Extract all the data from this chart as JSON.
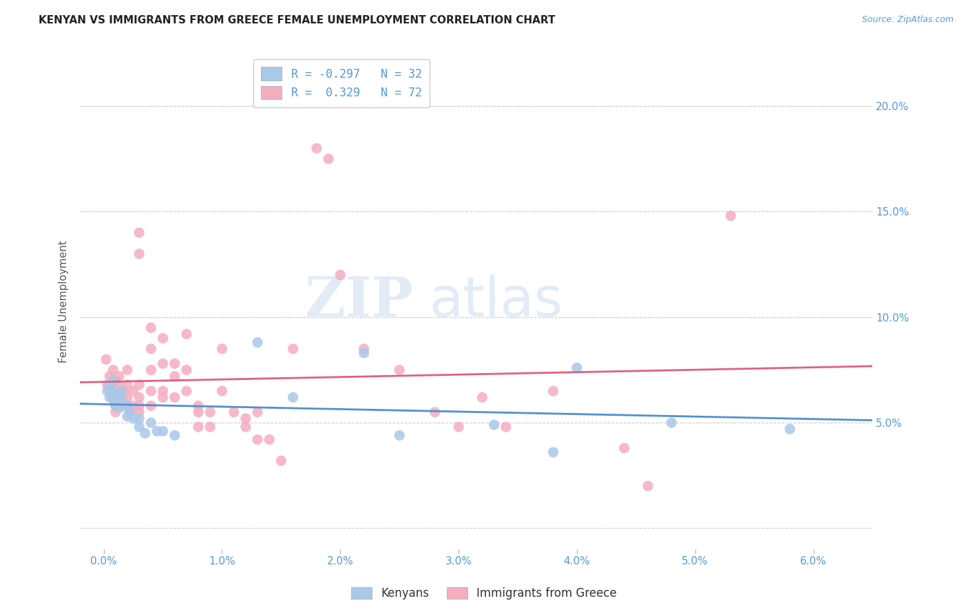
{
  "title": "KENYAN VS IMMIGRANTS FROM GREECE FEMALE UNEMPLOYMENT CORRELATION CHART",
  "source": "Source: ZipAtlas.com",
  "ylabel": "Female Unemployment",
  "x_ticks": [
    0.0,
    0.01,
    0.02,
    0.03,
    0.04,
    0.05,
    0.06
  ],
  "x_tick_labels": [
    "0.0%",
    "1.0%",
    "2.0%",
    "3.0%",
    "4.0%",
    "5.0%",
    "6.0%"
  ],
  "y_ticks": [
    0.0,
    0.05,
    0.1,
    0.15,
    0.2
  ],
  "y_tick_labels": [
    "",
    "5.0%",
    "10.0%",
    "15.0%",
    "20.0%"
  ],
  "xlim": [
    -0.002,
    0.065
  ],
  "ylim": [
    -0.01,
    0.225
  ],
  "kenyan_R": -0.297,
  "kenyan_N": 32,
  "greece_R": 0.329,
  "greece_N": 72,
  "kenyan_color": "#aac8e8",
  "greece_color": "#f5adc0",
  "kenyan_line_color": "#5090d0",
  "greece_line_color": "#e06080",
  "legend_label_kenyan": "Kenyans",
  "legend_label_greece": "Immigrants from Greece",
  "watermark_zip": "ZIP",
  "watermark_atlas": "atlas",
  "kenyan_x": [
    0.0003,
    0.0005,
    0.0005,
    0.0007,
    0.0008,
    0.0009,
    0.001,
    0.001,
    0.0012,
    0.0013,
    0.0015,
    0.0015,
    0.002,
    0.002,
    0.0022,
    0.0025,
    0.003,
    0.003,
    0.0035,
    0.004,
    0.0045,
    0.005,
    0.006,
    0.013,
    0.016,
    0.022,
    0.025,
    0.033,
    0.038,
    0.04,
    0.048,
    0.058
  ],
  "kenyan_y": [
    0.065,
    0.068,
    0.062,
    0.065,
    0.07,
    0.06,
    0.063,
    0.058,
    0.062,
    0.057,
    0.061,
    0.065,
    0.058,
    0.053,
    0.055,
    0.052,
    0.052,
    0.048,
    0.045,
    0.05,
    0.046,
    0.046,
    0.044,
    0.088,
    0.062,
    0.083,
    0.044,
    0.049,
    0.036,
    0.076,
    0.05,
    0.047
  ],
  "greece_x": [
    0.0002,
    0.0003,
    0.0005,
    0.0005,
    0.0007,
    0.0008,
    0.0009,
    0.001,
    0.001,
    0.001,
    0.001,
    0.0012,
    0.0013,
    0.0015,
    0.0015,
    0.0017,
    0.002,
    0.002,
    0.002,
    0.002,
    0.0022,
    0.0025,
    0.0025,
    0.003,
    0.003,
    0.003,
    0.003,
    0.003,
    0.003,
    0.004,
    0.004,
    0.004,
    0.004,
    0.004,
    0.005,
    0.005,
    0.005,
    0.005,
    0.006,
    0.006,
    0.006,
    0.007,
    0.007,
    0.007,
    0.008,
    0.008,
    0.008,
    0.009,
    0.009,
    0.01,
    0.01,
    0.011,
    0.012,
    0.012,
    0.013,
    0.013,
    0.014,
    0.015,
    0.016,
    0.018,
    0.019,
    0.02,
    0.022,
    0.025,
    0.028,
    0.03,
    0.032,
    0.034,
    0.038,
    0.044,
    0.046,
    0.053
  ],
  "greece_y": [
    0.08,
    0.068,
    0.065,
    0.072,
    0.062,
    0.075,
    0.063,
    0.07,
    0.065,
    0.058,
    0.055,
    0.068,
    0.072,
    0.063,
    0.058,
    0.065,
    0.075,
    0.068,
    0.062,
    0.058,
    0.055,
    0.065,
    0.058,
    0.14,
    0.13,
    0.068,
    0.062,
    0.058,
    0.055,
    0.095,
    0.085,
    0.075,
    0.065,
    0.058,
    0.09,
    0.078,
    0.065,
    0.062,
    0.078,
    0.072,
    0.062,
    0.092,
    0.075,
    0.065,
    0.058,
    0.055,
    0.048,
    0.055,
    0.048,
    0.085,
    0.065,
    0.055,
    0.052,
    0.048,
    0.055,
    0.042,
    0.042,
    0.032,
    0.085,
    0.18,
    0.175,
    0.12,
    0.085,
    0.075,
    0.055,
    0.048,
    0.062,
    0.048,
    0.065,
    0.038,
    0.02,
    0.148
  ]
}
